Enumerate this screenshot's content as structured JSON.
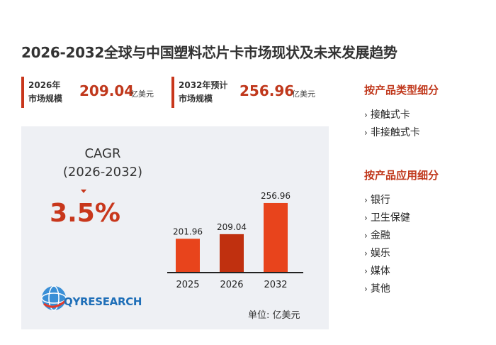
{
  "title": "2026-2032全球与中国塑料芯片卡市场现状及未来发展趋势",
  "stats": [
    {
      "label_line1": "2026年",
      "label_line2": "市场规模",
      "value": "209.04",
      "unit": "亿美元"
    },
    {
      "label_line1": "2032年预计",
      "label_line2": "市场规模",
      "value": "256.96",
      "unit": "亿美元"
    }
  ],
  "cagr": {
    "label": "CAGR",
    "period": "(2026-2032)",
    "value": "3.5%"
  },
  "unit_note": "单位:  亿美元",
  "logo": {
    "text": "QYRESEARCH"
  },
  "colors": {
    "accent": "#c8371c",
    "bar": "#e8441c",
    "bar_highlight": "#c0300f",
    "panel_bg": "#eef0f4"
  },
  "chart_data": {
    "type": "bar",
    "categories": [
      "2025",
      "2026",
      "2032"
    ],
    "values": [
      201.96,
      209.04,
      256.96
    ],
    "data_labels": [
      "201.96",
      "209.04",
      "256.96"
    ],
    "highlight_index": 1,
    "ylim": [
      150,
      270
    ]
  },
  "segments": [
    {
      "title": "按产品类型细分",
      "items": [
        "接触式卡",
        "非接触式卡"
      ]
    },
    {
      "title": "按产品应用细分",
      "items": [
        "银行",
        "卫生保健",
        "金融",
        "娱乐",
        "媒体",
        "其他"
      ]
    }
  ]
}
